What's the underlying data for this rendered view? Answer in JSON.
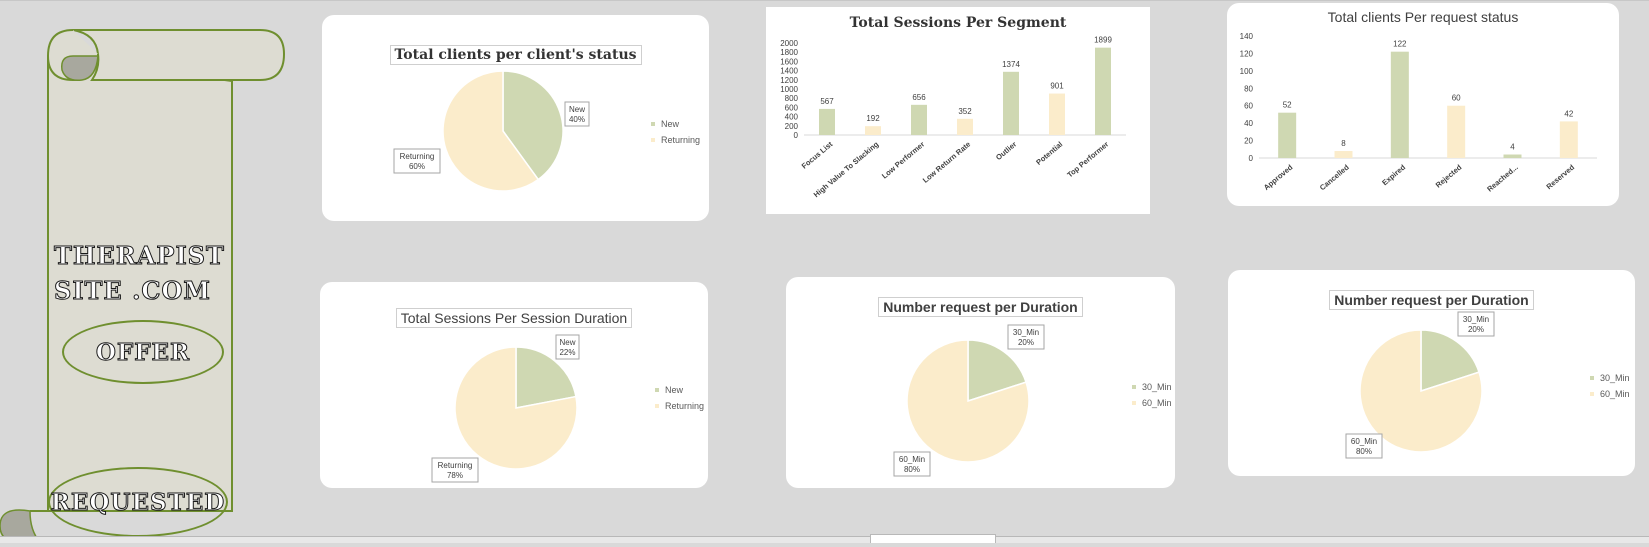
{
  "sidebar": {
    "brand_line1": "THERAPIST",
    "brand_line2": "SITE .COM",
    "offer_label": "OFFER",
    "requested_label": "REQUESTED"
  },
  "colors": {
    "green": "#cfd8b2",
    "cream": "#fbeccb",
    "scroll_fill": "#dddcd2",
    "scroll_stroke": "#6f8f2f"
  },
  "chart_data": [
    {
      "id": "client-status",
      "type": "pie",
      "title": "Total clients per client's status",
      "categories": [
        "New",
        "Returning"
      ],
      "values": [
        40,
        60
      ],
      "labels": [
        "New\n40%",
        "Returning\n60%"
      ],
      "legend": "right"
    },
    {
      "id": "sessions-segment",
      "type": "bar",
      "title": "Total Sessions Per Segment",
      "categories": [
        "Focus List",
        "High Value To Slacking",
        "Low Performer",
        "Low Return Rate",
        "Outlier",
        "Potential",
        "Top Performer"
      ],
      "values": [
        567,
        192,
        656,
        352,
        1374,
        901,
        1899
      ],
      "ylim": [
        0,
        2000
      ],
      "yticks": [
        0,
        200,
        400,
        600,
        800,
        1000,
        1200,
        1400,
        1600,
        1800,
        2000
      ],
      "grid": false
    },
    {
      "id": "request-status",
      "type": "bar",
      "title": "Total clients Per request status",
      "categories": [
        "Approved",
        "Cancelled",
        "Expired",
        "Rejected",
        "Reached...",
        "Reserved"
      ],
      "values": [
        52,
        8,
        122,
        60,
        4,
        42
      ],
      "ylim": [
        0,
        140
      ],
      "yticks": [
        0,
        20,
        40,
        60,
        80,
        100,
        120,
        140
      ],
      "grid": false
    },
    {
      "id": "session-duration",
      "type": "pie",
      "title": "Total Sessions Per Session Duration",
      "categories": [
        "New",
        "Returning"
      ],
      "values": [
        22,
        78
      ],
      "labels": [
        "New\n22%",
        "Returning\n78%"
      ],
      "legend": "right"
    },
    {
      "id": "request-duration-1",
      "type": "pie",
      "title": "Number request per Duration",
      "categories": [
        "30_Min",
        "60_Min"
      ],
      "values": [
        20,
        80
      ],
      "labels": [
        "30_Min\n20%",
        "60_Min\n80%"
      ],
      "legend": "right"
    },
    {
      "id": "request-duration-2",
      "type": "pie",
      "title": "Number request per Duration",
      "categories": [
        "30_Min",
        "60_Min"
      ],
      "values": [
        20,
        80
      ],
      "labels": [
        "30_Min\n20%",
        "60_Min\n80%"
      ],
      "legend": "right"
    }
  ]
}
